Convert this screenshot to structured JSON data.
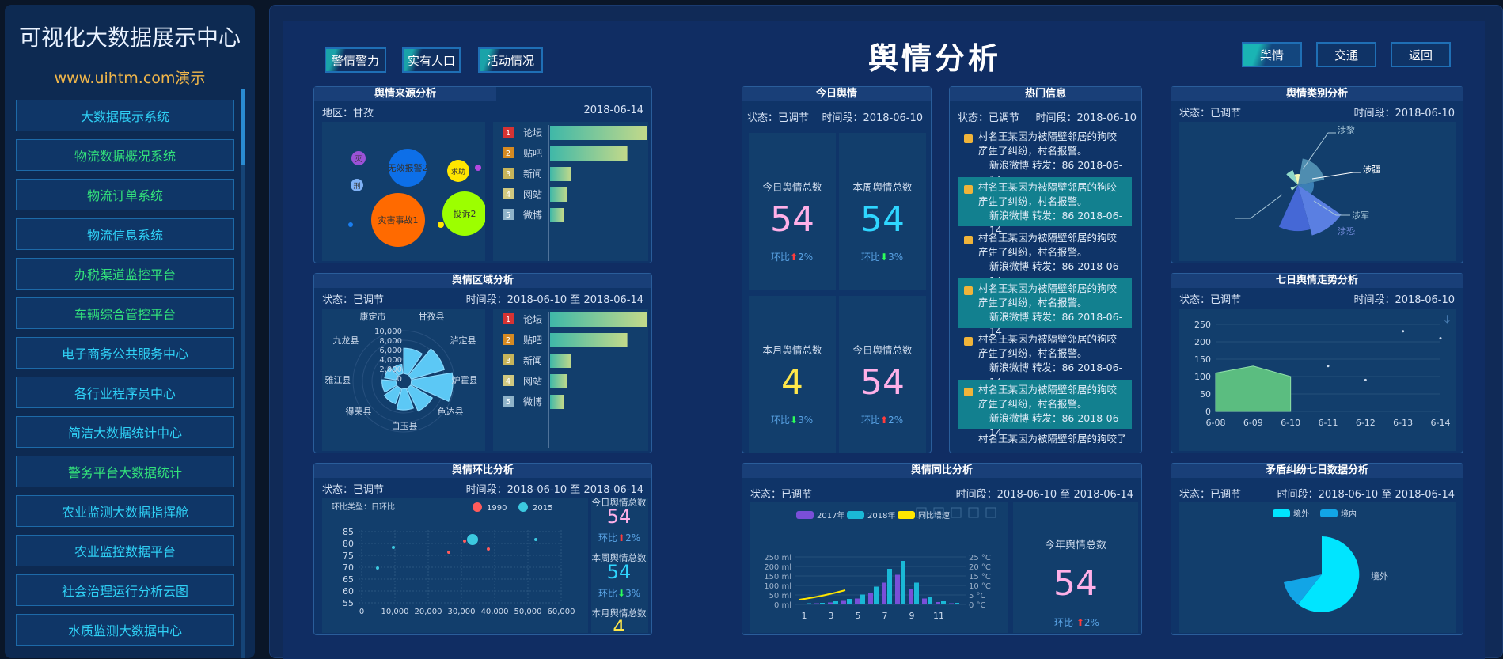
{
  "sidebar": {
    "title": "可视化大数据展示中心",
    "subtitle": "www.uihtm.com演示",
    "items": [
      {
        "label": "大数据展示系统"
      },
      {
        "label": "物流数据概况系统"
      },
      {
        "label": "物流订单系统"
      },
      {
        "label": "物流信息系统"
      },
      {
        "label": "办税渠道监控平台"
      },
      {
        "label": "车辆综合管控平台"
      },
      {
        "label": "电子商务公共服务中心"
      },
      {
        "label": "各行业程序员中心"
      },
      {
        "label": "简洁大数据统计中心"
      },
      {
        "label": "警务平台大数据统计"
      },
      {
        "label": "农业监测大数据指挥舱"
      },
      {
        "label": "农业监控数据平台"
      },
      {
        "label": "社会治理运行分析云图"
      },
      {
        "label": "水质监测大数据中心"
      }
    ]
  },
  "header": {
    "title": "舆情分析",
    "left_buttons": [
      "警情警力",
      "实有人口",
      "活动情况"
    ],
    "right_buttons": [
      "舆情",
      "交通",
      "返回"
    ]
  },
  "source": {
    "title": "舆情来源分析",
    "region": "地区：甘孜",
    "date": "2018-06-14",
    "bubbles": [
      {
        "label": "灾害事故1",
        "color": "#ff6a00"
      },
      {
        "label": "投诉2",
        "color": "#9cff00"
      },
      {
        "label": "无效报警2",
        "color": "#0d6fe8"
      },
      {
        "label": "求助",
        "color": "#ffe600"
      },
      {
        "label": "灭",
        "color": "#9b52d6"
      },
      {
        "label": "刑",
        "color": "#7fb1f5"
      }
    ],
    "bar_ranks": [
      "1",
      "2",
      "3",
      "4",
      "5"
    ],
    "bar_labels": [
      "论坛",
      "贴吧",
      "新闻",
      "网站",
      "微博"
    ],
    "bar_values": [
      100,
      80,
      22,
      18,
      14
    ]
  },
  "region": {
    "title": "舆情区域分析",
    "status": "状态：已调节",
    "time": "时间段：2018-06-10 至 2018-06-14",
    "radar_labels": [
      "康定市",
      "甘孜县",
      "泸定县",
      "炉霍县",
      "色达县",
      "白玉县",
      "得荣县",
      "雅江县",
      "九龙县"
    ],
    "radial_ticks": [
      "10,000",
      "8,000",
      "6,000",
      "4,000",
      "2,000",
      "0"
    ],
    "radial_values": [
      0.55,
      0.75,
      0.9,
      0.55,
      0.45,
      0.35,
      0.3,
      0.25,
      0.2
    ],
    "bar_ranks": [
      "1",
      "2",
      "3",
      "4",
      "5"
    ],
    "bar_labels": [
      "论坛",
      "贴吧",
      "新闻",
      "网站",
      "微博"
    ],
    "bar_values": [
      100,
      80,
      22,
      18,
      14
    ]
  },
  "ratio": {
    "title": "舆情环比分析",
    "status": "状态：已调节",
    "time": "时间段：2018-06-10 至 2018-06-14",
    "chart_label": "环比类型：日环比",
    "legend": [
      {
        "name": "1990",
        "color": "#ff5b5b"
      },
      {
        "name": "2015",
        "color": "#3cc9e0"
      }
    ],
    "y_ticks": [
      "85",
      "80",
      "75",
      "70",
      "65",
      "60",
      "55"
    ],
    "x_ticks": [
      "0",
      "10,000",
      "20,000",
      "30,000",
      "40,000",
      "50,000",
      "60,000"
    ],
    "stats": [
      {
        "label": "今日舆情总数",
        "value": "54",
        "ratio": "环比",
        "pct": "2%",
        "dir": "up",
        "color": "#ffb0e8"
      },
      {
        "label": "本周舆情总数",
        "value": "54",
        "ratio": "环比",
        "pct": "3%",
        "dir": "down",
        "color": "#2fd6ff"
      },
      {
        "label": "本月舆情总数",
        "value": "4",
        "color": "#ffe74a"
      }
    ]
  },
  "today": {
    "title": "今日舆情",
    "status": "状态：已调节",
    "time": "时间段：2018-06-10",
    "cards": [
      {
        "label": "今日舆情总数",
        "value": "54",
        "ratio": "环比",
        "pct": "2%",
        "dir": "up",
        "color": "#ffb0e8"
      },
      {
        "label": "本周舆情总数",
        "value": "54",
        "ratio": "环比",
        "pct": "3%",
        "dir": "down",
        "color": "#2fd6ff"
      },
      {
        "label": "本月舆情总数",
        "value": "4",
        "ratio": "环比",
        "pct": "3%",
        "dir": "down",
        "color": "#ffe74a"
      },
      {
        "label": "今日舆情总数",
        "value": "54",
        "ratio": "环比",
        "pct": "2%",
        "dir": "up",
        "color": "#ffb0e8"
      }
    ]
  },
  "hot": {
    "title": "热门信息",
    "status": "状态：已调节",
    "time": "时间段：2018-06-10",
    "items": [
      {
        "text1": "村名王某因为被隔壁邻居的狗咬了，",
        "text2": "产生了纠纷，村名报警。",
        "meta": "新浪微博 转发：86 2018-06-14"
      },
      {
        "text1": "村名王某因为被隔壁邻居的狗咬了，",
        "text2": "产生了纠纷，村名报警。",
        "meta": "新浪微博 转发：86 2018-06-14"
      },
      {
        "text1": "村名王某因为被隔壁邻居的狗咬了，",
        "text2": "产生了纠纷，村名报警。",
        "meta": "新浪微博 转发：86 2018-06-14"
      },
      {
        "text1": "村名王某因为被隔壁邻居的狗咬了，",
        "text2": "产生了纠纷，村名报警。",
        "meta": "新浪微博 转发：86 2018-06-14"
      },
      {
        "text1": "村名王某因为被隔壁邻居的狗咬了，",
        "text2": "产生了纠纷，村名报警。",
        "meta": "新浪微博 转发：86 2018-06-14"
      },
      {
        "text1": "村名王某因为被隔壁邻居的狗咬了，",
        "text2": "产生了纠纷，村名报警。",
        "meta": "新浪微博 转发：86 2018-06-14"
      }
    ],
    "cut": "村名王某因为被隔壁邻居的狗咬了"
  },
  "yoy": {
    "title": "舆情同比分析",
    "status": "状态：已调节",
    "time": "时间段：2018-06-10 至 2018-06-14",
    "legend": [
      {
        "name": "2017年",
        "color": "#7a4fd8"
      },
      {
        "name": "2018年",
        "color": "#1ab8d6"
      },
      {
        "name": "同比增速",
        "color": "#ffe600"
      }
    ],
    "y_left": [
      "250 ml",
      "200 ml",
      "150 ml",
      "100 ml",
      "50 ml",
      "0 ml"
    ],
    "y_right": [
      "25 °C",
      "20 °C",
      "15 °C",
      "10 °C",
      "5 °C",
      "0 °C"
    ],
    "x_ticks": [
      "1",
      "3",
      "5",
      "7",
      "9",
      "11"
    ],
    "series_2017": [
      2,
      3,
      5,
      9,
      15,
      28,
      55,
      75,
      40,
      15,
      6,
      3
    ],
    "series_2018": [
      3,
      4,
      8,
      14,
      25,
      45,
      90,
      110,
      55,
      20,
      8,
      4
    ],
    "year_label": "今年舆情总数",
    "year_value": "54",
    "ratio": "环比",
    "pct": "2%"
  },
  "category": {
    "title": "舆情类别分析",
    "status": "状态：已调节",
    "time": "时间段：2018-06-10",
    "labels": [
      "涉黎",
      "涉疆",
      "涉军",
      "涉恐"
    ]
  },
  "trend": {
    "title": "七日舆情走势分析",
    "status": "状态：已调节",
    "time": "时间段：2018-06-10",
    "y_ticks": [
      "250",
      "200",
      "150",
      "100",
      "50",
      "0"
    ],
    "chart_data": {
      "type": "area",
      "x": [
        "6-08",
        "6-09",
        "6-10",
        "6-11",
        "6-12",
        "6-13",
        "6-14"
      ],
      "values": [
        110,
        130,
        100,
        130,
        90,
        230,
        210
      ],
      "ylim": [
        0,
        250
      ]
    }
  },
  "dispute": {
    "title": "矛盾纠纷七日数据分析",
    "status": "状态：已调节",
    "time": "时间段：2018-06-10 至 2018-06-14",
    "legend": [
      {
        "name": "境外",
        "color": "#00e5ff"
      },
      {
        "name": "境内",
        "color": "#12a5e6"
      }
    ],
    "pie_label": "境外"
  }
}
